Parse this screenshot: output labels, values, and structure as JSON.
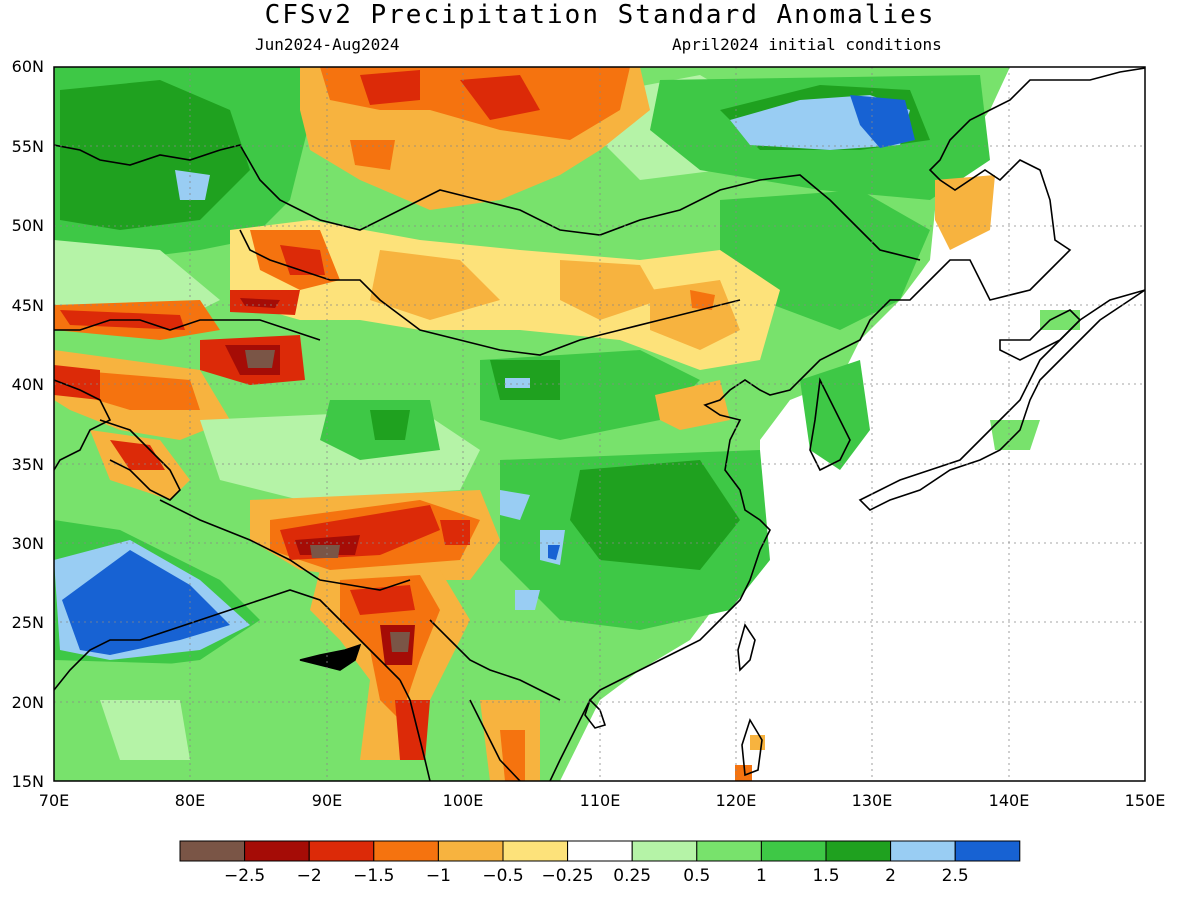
{
  "title": "CFSv2 Precipitation Standard Anomalies",
  "subtitle_left": "Jun2024-Aug2024",
  "subtitle_right": "April2024 initial conditions",
  "map": {
    "lon_range": [
      70,
      150
    ],
    "lat_range": [
      15,
      60
    ],
    "lon_ticks": [
      "70E",
      "80E",
      "90E",
      "100E",
      "110E",
      "120E",
      "130E",
      "140E",
      "150E"
    ],
    "lat_ticks": [
      "60N",
      "55N",
      "50N",
      "45N",
      "40N",
      "35N",
      "30N",
      "25N",
      "20N",
      "15N"
    ]
  },
  "colorbar": {
    "colors": [
      "#7a5546",
      "#a50c06",
      "#dc2a08",
      "#f5730f",
      "#f7b33f",
      "#fde27a",
      "#ffffff",
      "#b5f3a7",
      "#78e26c",
      "#3ec846",
      "#1fa11f",
      "#99cdf3",
      "#1762d3"
    ],
    "labels": [
      "-2.5",
      "-2",
      "-1.5",
      "-1",
      "-0.5",
      "-0.25",
      "0.25",
      "0.5",
      "1",
      "1.5",
      "2",
      "2.5"
    ]
  }
}
